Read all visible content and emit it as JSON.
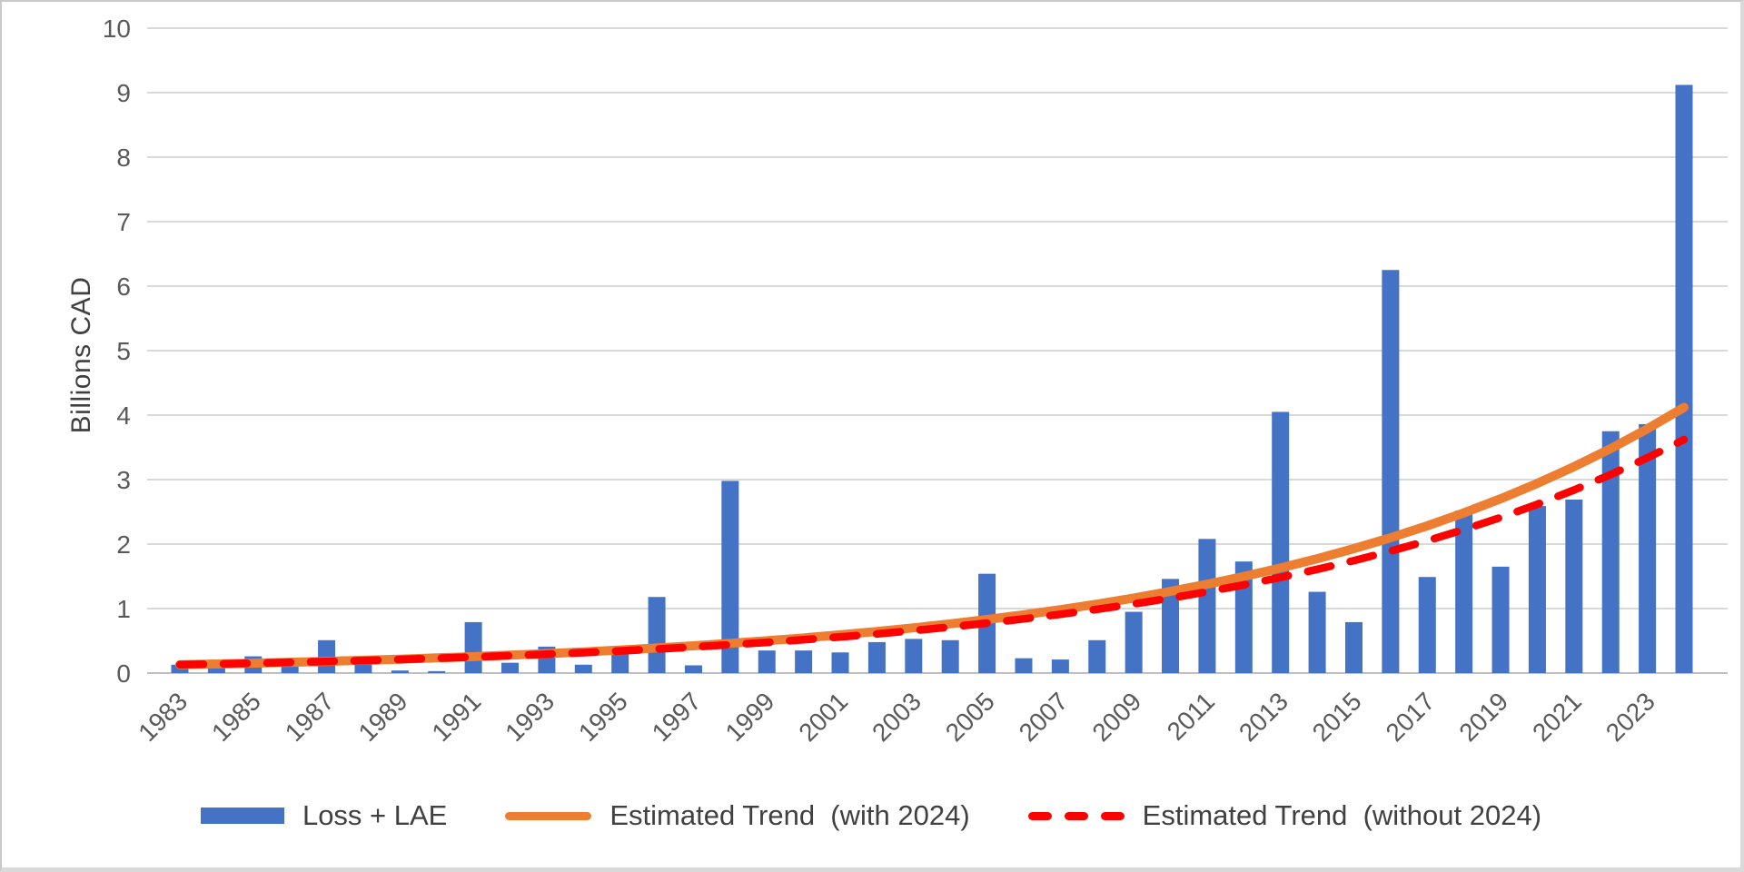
{
  "chart_data": {
    "type": "bar",
    "title": "",
    "ylabel": "Billions CAD",
    "xlabel": "",
    "ylim": [
      0,
      10
    ],
    "y_ticks": [
      0,
      1,
      2,
      3,
      4,
      5,
      6,
      7,
      8,
      9,
      10
    ],
    "x_tick_labels": [
      "1983",
      "1985",
      "1987",
      "1989",
      "1991",
      "1993",
      "1995",
      "1997",
      "1999",
      "2001",
      "2003",
      "2005",
      "2007",
      "2009",
      "2011",
      "2013",
      "2015",
      "2017",
      "2019",
      "2021",
      "2023"
    ],
    "grid": "horizontal",
    "legend_position": "bottom",
    "categories": [
      1983,
      1984,
      1985,
      1986,
      1987,
      1988,
      1989,
      1990,
      1991,
      1992,
      1993,
      1994,
      1995,
      1996,
      1997,
      1998,
      1999,
      2000,
      2001,
      2002,
      2003,
      2004,
      2005,
      2006,
      2007,
      2008,
      2009,
      2010,
      2011,
      2012,
      2013,
      2014,
      2015,
      2016,
      2017,
      2018,
      2019,
      2020,
      2021,
      2022,
      2023,
      2024
    ],
    "series": [
      {
        "name": "Loss + LAE",
        "type": "bar",
        "color": "#4472C4",
        "values": [
          0.13,
          0.12,
          0.26,
          0.1,
          0.51,
          0.26,
          0.04,
          0.03,
          0.79,
          0.16,
          0.41,
          0.13,
          0.37,
          1.18,
          0.12,
          2.98,
          0.35,
          0.35,
          0.32,
          0.48,
          0.53,
          0.51,
          1.54,
          0.23,
          0.21,
          0.51,
          0.95,
          1.46,
          2.08,
          1.73,
          4.05,
          1.26,
          0.79,
          6.25,
          1.49,
          2.52,
          1.65,
          2.59,
          2.69,
          3.75,
          3.86,
          9.12
        ]
      },
      {
        "name": "Estimated Trend  (with 2024)",
        "type": "exponential_trend",
        "color": "#ED7D31",
        "style": "solid",
        "start_year": 1983,
        "end_year": 2024,
        "start_value": 0.13,
        "end_value": 4.12
      },
      {
        "name": "Estimated Trend  (without 2024)",
        "type": "exponential_trend",
        "color": "#FF0000",
        "style": "dashed",
        "start_year": 1983,
        "end_year": 2024,
        "start_value": 0.13,
        "end_value": 3.62
      }
    ]
  },
  "legend": {
    "bar_label": "Loss + LAE",
    "trend_with_label": "Estimated Trend  (with 2024)",
    "trend_without_label": "Estimated Trend  (without 2024)"
  },
  "axis": {
    "y_title": "Billions CAD"
  },
  "colors": {
    "bar": "#4472C4",
    "trend_with": "#ED7D31",
    "trend_without": "#FF0000",
    "gridline": "#d9d9d9",
    "axis_line": "#bfbfbf",
    "tick_text": "#595959",
    "label_text": "#404040"
  }
}
